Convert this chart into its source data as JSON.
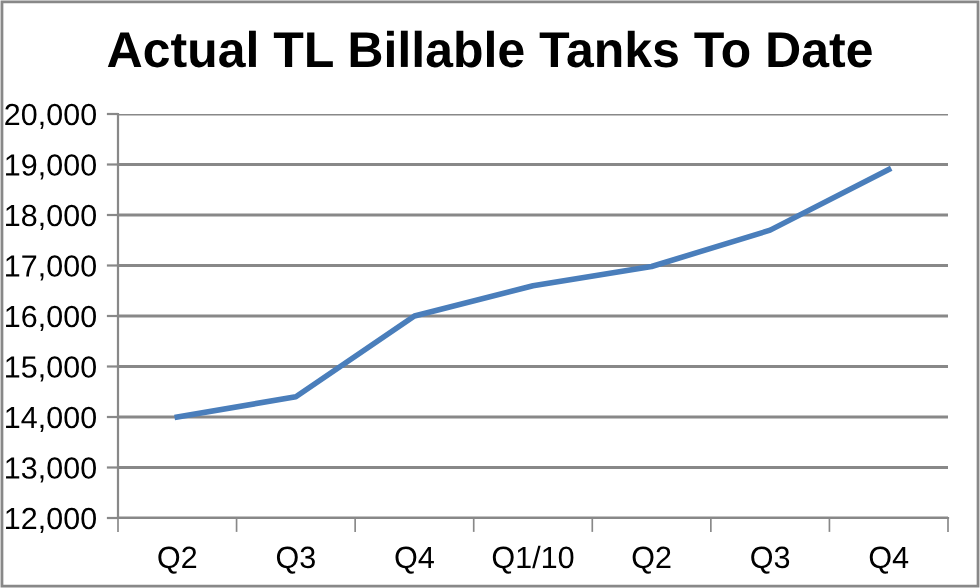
{
  "chart_data": {
    "type": "line",
    "title": "Actual TL Billable Tanks To Date",
    "categories": [
      "Q2",
      "Q3",
      "Q4",
      "Q1/10",
      "Q2",
      "Q3",
      "Q4"
    ],
    "series": [
      {
        "color": "#4a7ebb",
        "values": [
          14000,
          14400,
          16000,
          16600,
          16980,
          17700,
          18900
        ]
      }
    ],
    "ylim": [
      12000,
      20000
    ],
    "yticks": [
      {
        "value": 12000,
        "label": "12,000"
      },
      {
        "value": 13000,
        "label": "13,000"
      },
      {
        "value": 14000,
        "label": "14,000"
      },
      {
        "value": 15000,
        "label": "15,000"
      },
      {
        "value": 16000,
        "label": "16,000"
      },
      {
        "value": 17000,
        "label": "17,000"
      },
      {
        "value": 18000,
        "label": "18,000"
      },
      {
        "value": 19000,
        "label": "19,000"
      },
      {
        "value": 20000,
        "label": "20,000"
      }
    ],
    "grid": "y",
    "legend": false,
    "marker": "none",
    "line_style": "solid"
  }
}
